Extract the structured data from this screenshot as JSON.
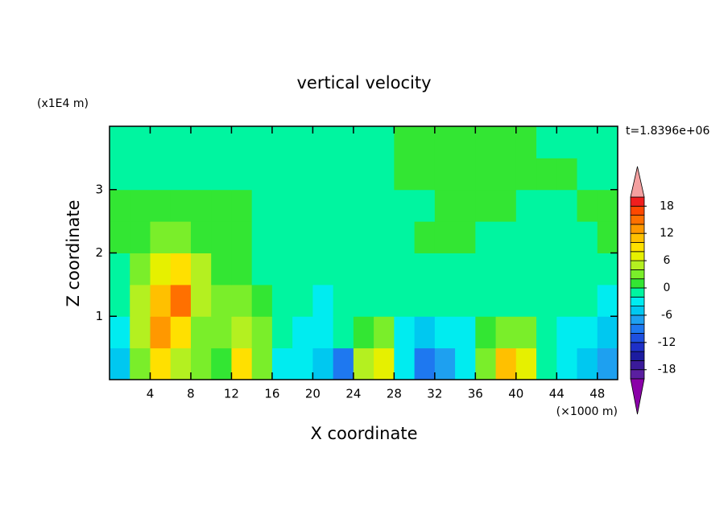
{
  "chart_data": {
    "type": "contour",
    "title": "vertical velocity",
    "xlabel": "X coordinate",
    "ylabel": "Z coordinate",
    "x_unit_label": "(×1000 m)",
    "y_unit_label": "(x1E4 m)",
    "annotation": "t=1.8396e+06",
    "xlim": [
      0,
      50
    ],
    "ylim": [
      0,
      4
    ],
    "xticks": [
      4,
      8,
      12,
      16,
      20,
      24,
      28,
      32,
      36,
      40,
      44,
      48
    ],
    "yticks": [
      1,
      2,
      3
    ],
    "x": [
      1,
      3,
      5,
      7,
      9,
      11,
      13,
      15,
      17,
      19,
      21,
      23,
      25,
      27,
      29,
      31,
      33,
      35,
      37,
      39,
      41,
      43,
      45,
      47,
      49
    ],
    "y": [
      0.25,
      0.75,
      1.25,
      1.75,
      2.25,
      2.75,
      3.25,
      3.75
    ],
    "z": [
      [
        -5,
        2,
        8,
        4,
        2,
        1,
        8,
        3,
        -3,
        -4,
        -5,
        -9,
        4,
        6,
        -4,
        -10,
        -7,
        -4,
        2,
        10,
        6,
        -1,
        -4,
        -6,
        -8
      ],
      [
        -3,
        4,
        12,
        8,
        3,
        2,
        4,
        3,
        -1,
        -3,
        -3,
        -2,
        1,
        2,
        -3,
        -5,
        -4,
        -3,
        1,
        3,
        2,
        -1,
        -3,
        -4,
        -5
      ],
      [
        -1,
        4,
        10,
        14,
        5,
        2,
        2,
        1,
        -1,
        -2,
        -3,
        -1,
        -1,
        -1,
        -2,
        -2,
        -2,
        -2,
        -1,
        -1,
        -1,
        -1,
        -1,
        -2,
        -3
      ],
      [
        -1,
        3,
        6,
        8,
        4,
        1,
        1,
        -1,
        -2,
        -1,
        -1,
        -1,
        -1,
        -1,
        -1,
        -1,
        -1,
        -1,
        -1,
        -1,
        -1,
        -1,
        -1,
        -2,
        -2
      ],
      [
        1,
        1,
        2,
        2,
        1,
        1,
        1,
        -1,
        -1,
        -1,
        -1,
        -1,
        -1,
        -1,
        -1,
        1,
        1,
        1,
        -1,
        -1,
        -1,
        -1,
        -1,
        -1,
        1
      ],
      [
        1,
        1,
        1,
        1,
        1,
        1,
        1,
        -1,
        -1,
        -1,
        -1,
        -1,
        -1,
        -1,
        -1,
        -1,
        1,
        1,
        1,
        1,
        -1,
        -1,
        -1,
        1,
        1
      ],
      [
        -1,
        -1,
        -1,
        -1,
        -1,
        -1,
        -1,
        -1,
        -1,
        -1,
        -1,
        -1,
        -1,
        -1,
        1,
        1,
        1,
        1,
        1,
        1,
        1,
        1,
        1,
        -1,
        -1
      ],
      [
        -1,
        -1,
        -1,
        -1,
        -1,
        -1,
        -1,
        -1,
        -1,
        -1,
        -1,
        -1,
        -1,
        -1,
        1,
        1,
        1,
        1,
        1,
        1,
        1,
        -1,
        -1,
        -1,
        -1
      ]
    ],
    "levels": [
      -20,
      -18,
      -16,
      -14,
      -12,
      -10,
      -8,
      -6,
      -4,
      -2,
      0,
      2,
      4,
      6,
      8,
      10,
      12,
      14,
      16,
      18,
      20
    ],
    "colors": [
      "#5a1fa0",
      "#3a1a9a",
      "#1c1ca0",
      "#1e30c8",
      "#1e50e0",
      "#1e78f0",
      "#1ea0f0",
      "#00c8f0",
      "#00ecf0",
      "#00f5a0",
      "#33e633",
      "#7aee2a",
      "#b4f020",
      "#e6f000",
      "#ffe000",
      "#ffc000",
      "#ff9800",
      "#ff7000",
      "#ff4800",
      "#f01e1e"
    ],
    "under_color": "#8a00a8",
    "over_color": "#f4a0a0",
    "colorbar_ticks": [
      -18,
      -12,
      -6,
      0,
      6,
      12,
      18
    ]
  }
}
